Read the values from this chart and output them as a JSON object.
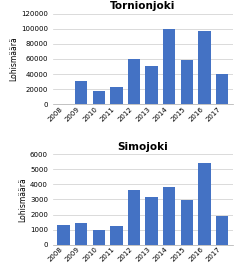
{
  "tornio_years": [
    "2008",
    "2009",
    "2010",
    "2011",
    "2012",
    "2013",
    "2014",
    "2015",
    "2016",
    "2017"
  ],
  "tornio_values": [
    0,
    31000,
    17000,
    23000,
    60000,
    51000,
    100000,
    58000,
    97000,
    40000
  ],
  "simo_years": [
    "2008",
    "2009",
    "2010",
    "2011",
    "2012",
    "2013",
    "2014",
    "2015",
    "2016",
    "2017"
  ],
  "simo_values": [
    1300,
    1450,
    950,
    1250,
    3650,
    3150,
    3800,
    2950,
    5400,
    1900
  ],
  "bar_color": "#4472C4",
  "title1": "Tornionjoki",
  "title2": "Simojoki",
  "ylabel": "Lohismäärä",
  "tornio_ylim": [
    0,
    120000
  ],
  "tornio_yticks": [
    0,
    20000,
    40000,
    60000,
    80000,
    100000,
    120000
  ],
  "simo_ylim": [
    0,
    6000
  ],
  "simo_yticks": [
    0,
    1000,
    2000,
    3000,
    4000,
    5000,
    6000
  ],
  "bg_color": "#ffffff",
  "grid_color": "#cccccc",
  "title_fontsize": 7.5,
  "label_fontsize": 5.5,
  "tick_fontsize": 5.0
}
